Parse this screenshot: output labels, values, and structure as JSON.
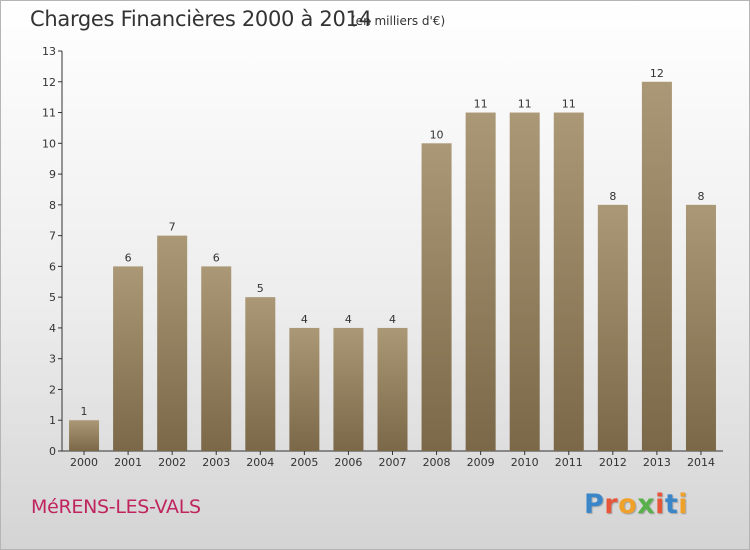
{
  "header": {
    "title": "Charges Financières 2000 à 2014",
    "subtitle": "(en milliers d'€)"
  },
  "commune": "MéRENS-LES-VALS",
  "logo": {
    "text": "Proxiti",
    "colors": [
      "#3a86c8",
      "#e8563a",
      "#f0a12a",
      "#58b04a",
      "#e8563a",
      "#3a86c8",
      "#f0a12a"
    ]
  },
  "colors": {
    "bar_light": "#ab9876",
    "bar_dark": "#7a6848",
    "commune": "#c0245e"
  },
  "chart_data": {
    "type": "bar",
    "title": "Charges Financières 2000 à 2014",
    "subtitle": "(en milliers d'€)",
    "xlabel": "",
    "ylabel": "",
    "categories": [
      "2000",
      "2001",
      "2002",
      "2003",
      "2004",
      "2005",
      "2006",
      "2007",
      "2008",
      "2009",
      "2010",
      "2011",
      "2012",
      "2013",
      "2014"
    ],
    "values": [
      1,
      6,
      7,
      6,
      5,
      4,
      4,
      4,
      10,
      11,
      11,
      11,
      8,
      12,
      8
    ],
    "ylim": [
      0,
      13
    ],
    "yticks": [
      0,
      1,
      2,
      3,
      4,
      5,
      6,
      7,
      8,
      9,
      10,
      11,
      12,
      13
    ],
    "grid": false,
    "data_labels": true
  }
}
